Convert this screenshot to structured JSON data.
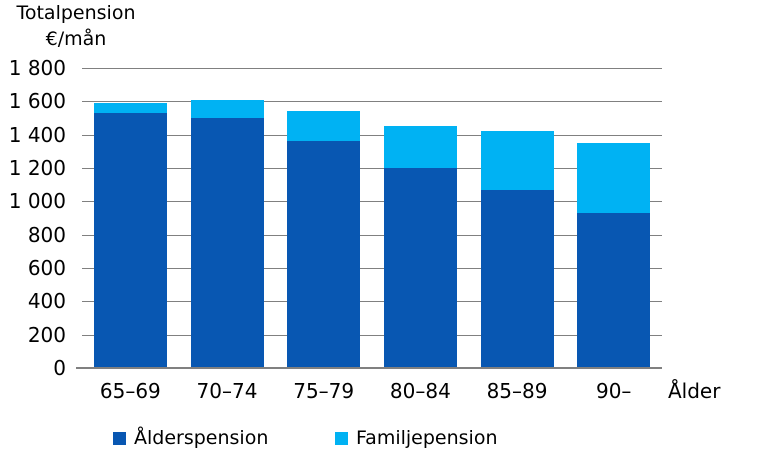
{
  "header": {
    "title_line1": "Totalpension",
    "title_line2": "€/mån"
  },
  "chart_data": {
    "type": "bar",
    "stacked": true,
    "title": "Totalpension €/mån",
    "xlabel": "Ålder",
    "ylabel": "€/mån",
    "categories": [
      "65–69",
      "70–74",
      "75–79",
      "80–84",
      "85–89",
      "90–"
    ],
    "series": [
      {
        "name": "Ålderspension",
        "color": "#0857B2",
        "values": [
          1530,
          1500,
          1360,
          1200,
          1070,
          930
        ]
      },
      {
        "name": "Familjepension",
        "color": "#00B2F3",
        "values": [
          60,
          110,
          180,
          255,
          350,
          420
        ]
      }
    ],
    "totals": [
      1590,
      1610,
      1540,
      1455,
      1420,
      1350
    ],
    "ylim": [
      0,
      1800
    ],
    "ytick_step": 200,
    "ytick_labels": [
      "0",
      "200",
      "400",
      "600",
      "800",
      "1 000",
      "1 200",
      "1 400",
      "1 600",
      "1 800"
    ],
    "grid": true,
    "legend_position": "bottom"
  },
  "colors": {
    "gridline": "#808080",
    "axis": "#808080",
    "text": "#000000",
    "background": "#ffffff"
  }
}
